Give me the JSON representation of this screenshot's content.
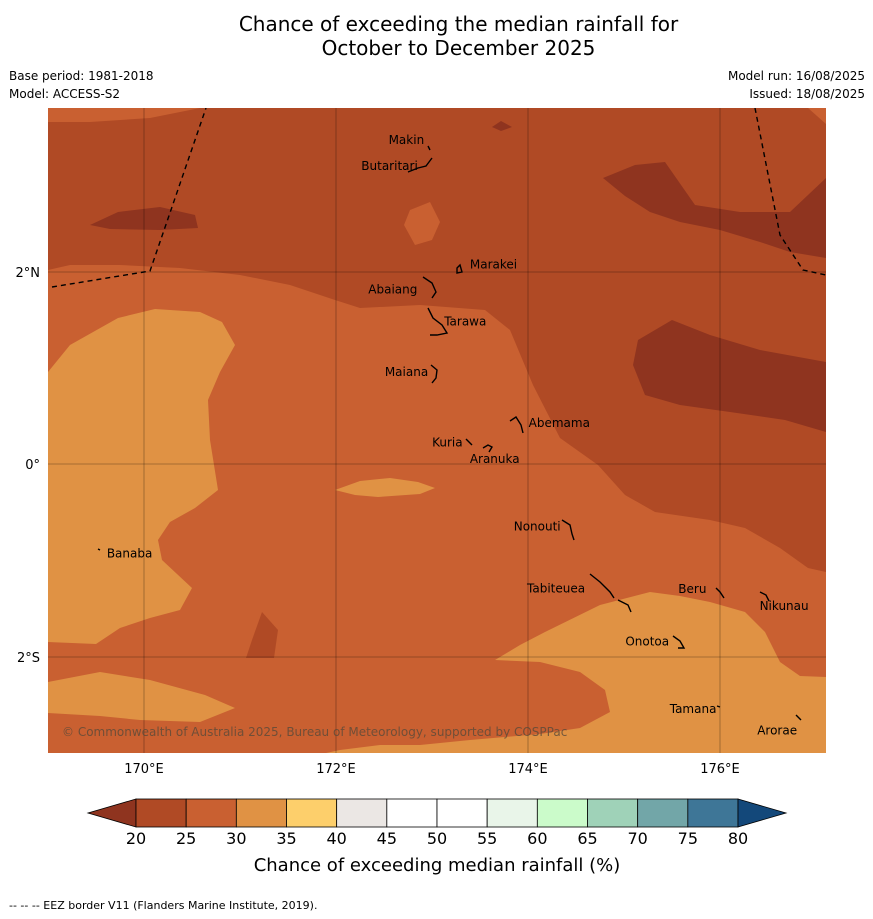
{
  "title_line1": "Chance of exceeding the median rainfall for",
  "title_line2": "October to December 2025",
  "base_period": "Base period: 1981-2018",
  "model": "Model: ACCESS-S2",
  "model_run": "Model run: 16/08/2025",
  "issued": "Issued: 18/08/2025",
  "copyright": "© Commonwealth of Australia 2025, Bureau of Meteorology, supported by COSPPac",
  "footer": "--  --  -- EEZ border V11 (Flanders Marine Institute, 2019).",
  "map": {
    "extent": {
      "lon_min": 169.0,
      "lon_max": 177.1,
      "lat_min": -2.995,
      "lat_max": 3.68
    },
    "lat_ticks": [
      {
        "value": 2,
        "label": "2°N"
      },
      {
        "value": 0,
        "label": "0°"
      },
      {
        "value": -2,
        "label": "2°S"
      }
    ],
    "lon_ticks": [
      {
        "value": 170,
        "label": "170°E"
      },
      {
        "value": 172,
        "label": "172°E"
      },
      {
        "value": 174,
        "label": "174°E"
      },
      {
        "value": 176,
        "label": "176°E"
      }
    ],
    "islands": [
      {
        "name": "Makin",
        "lon": 173.0,
        "lat": 3.35
      },
      {
        "name": "Butaritari",
        "lon": 172.85,
        "lat": 3.08
      },
      {
        "name": "Marakei",
        "lon": 173.33,
        "lat": 2.0
      },
      {
        "name": "Abaiang",
        "lon": 172.95,
        "lat": 1.8
      },
      {
        "name": "Tarawa",
        "lon": 173.0,
        "lat": 1.45
      },
      {
        "name": "Maiana",
        "lon": 173.0,
        "lat": 0.95
      },
      {
        "name": "Abemama",
        "lon": 173.9,
        "lat": 0.4
      },
      {
        "name": "Kuria",
        "lon": 173.4,
        "lat": 0.22
      },
      {
        "name": "Aranuka",
        "lon": 173.6,
        "lat": 0.17
      },
      {
        "name": "Nonouti",
        "lon": 174.4,
        "lat": -0.65
      },
      {
        "name": "Banaba",
        "lon": 169.55,
        "lat": -0.85
      },
      {
        "name": "Tabiteuea",
        "lon": 174.8,
        "lat": -1.25
      },
      {
        "name": "Beru",
        "lon": 175.98,
        "lat": -1.3
      },
      {
        "name": "Nikunau",
        "lon": 176.45,
        "lat": -1.35
      },
      {
        "name": "Onotoa",
        "lon": 175.55,
        "lat": -1.82
      },
      {
        "name": "Tamana",
        "lon": 175.98,
        "lat": -2.5
      },
      {
        "name": "Arorae",
        "lon": 176.82,
        "lat": -2.64
      }
    ],
    "category_colors": {
      "below_20": "#8f341f",
      "20_25": "#b04a25",
      "25_30": "#c96031",
      "30_35": "#e09244",
      "35_40": "#fdcf6b"
    }
  },
  "colorbar": {
    "label": "Chance of exceeding median rainfall (%)",
    "ticks": [
      "20",
      "25",
      "30",
      "35",
      "40",
      "45",
      "50",
      "55",
      "60",
      "65",
      "70",
      "75",
      "80"
    ],
    "low_extend_color": "#8f341f",
    "high_extend_color": "#13487a",
    "colors": [
      "#b04a25",
      "#c96031",
      "#e09244",
      "#fdcf6b",
      "#ebe7e4",
      "#ffffff",
      "#ffffff",
      "#e9f5e9",
      "#cbfbca",
      "#9fd2b8",
      "#72a6a8",
      "#3e7697"
    ]
  }
}
